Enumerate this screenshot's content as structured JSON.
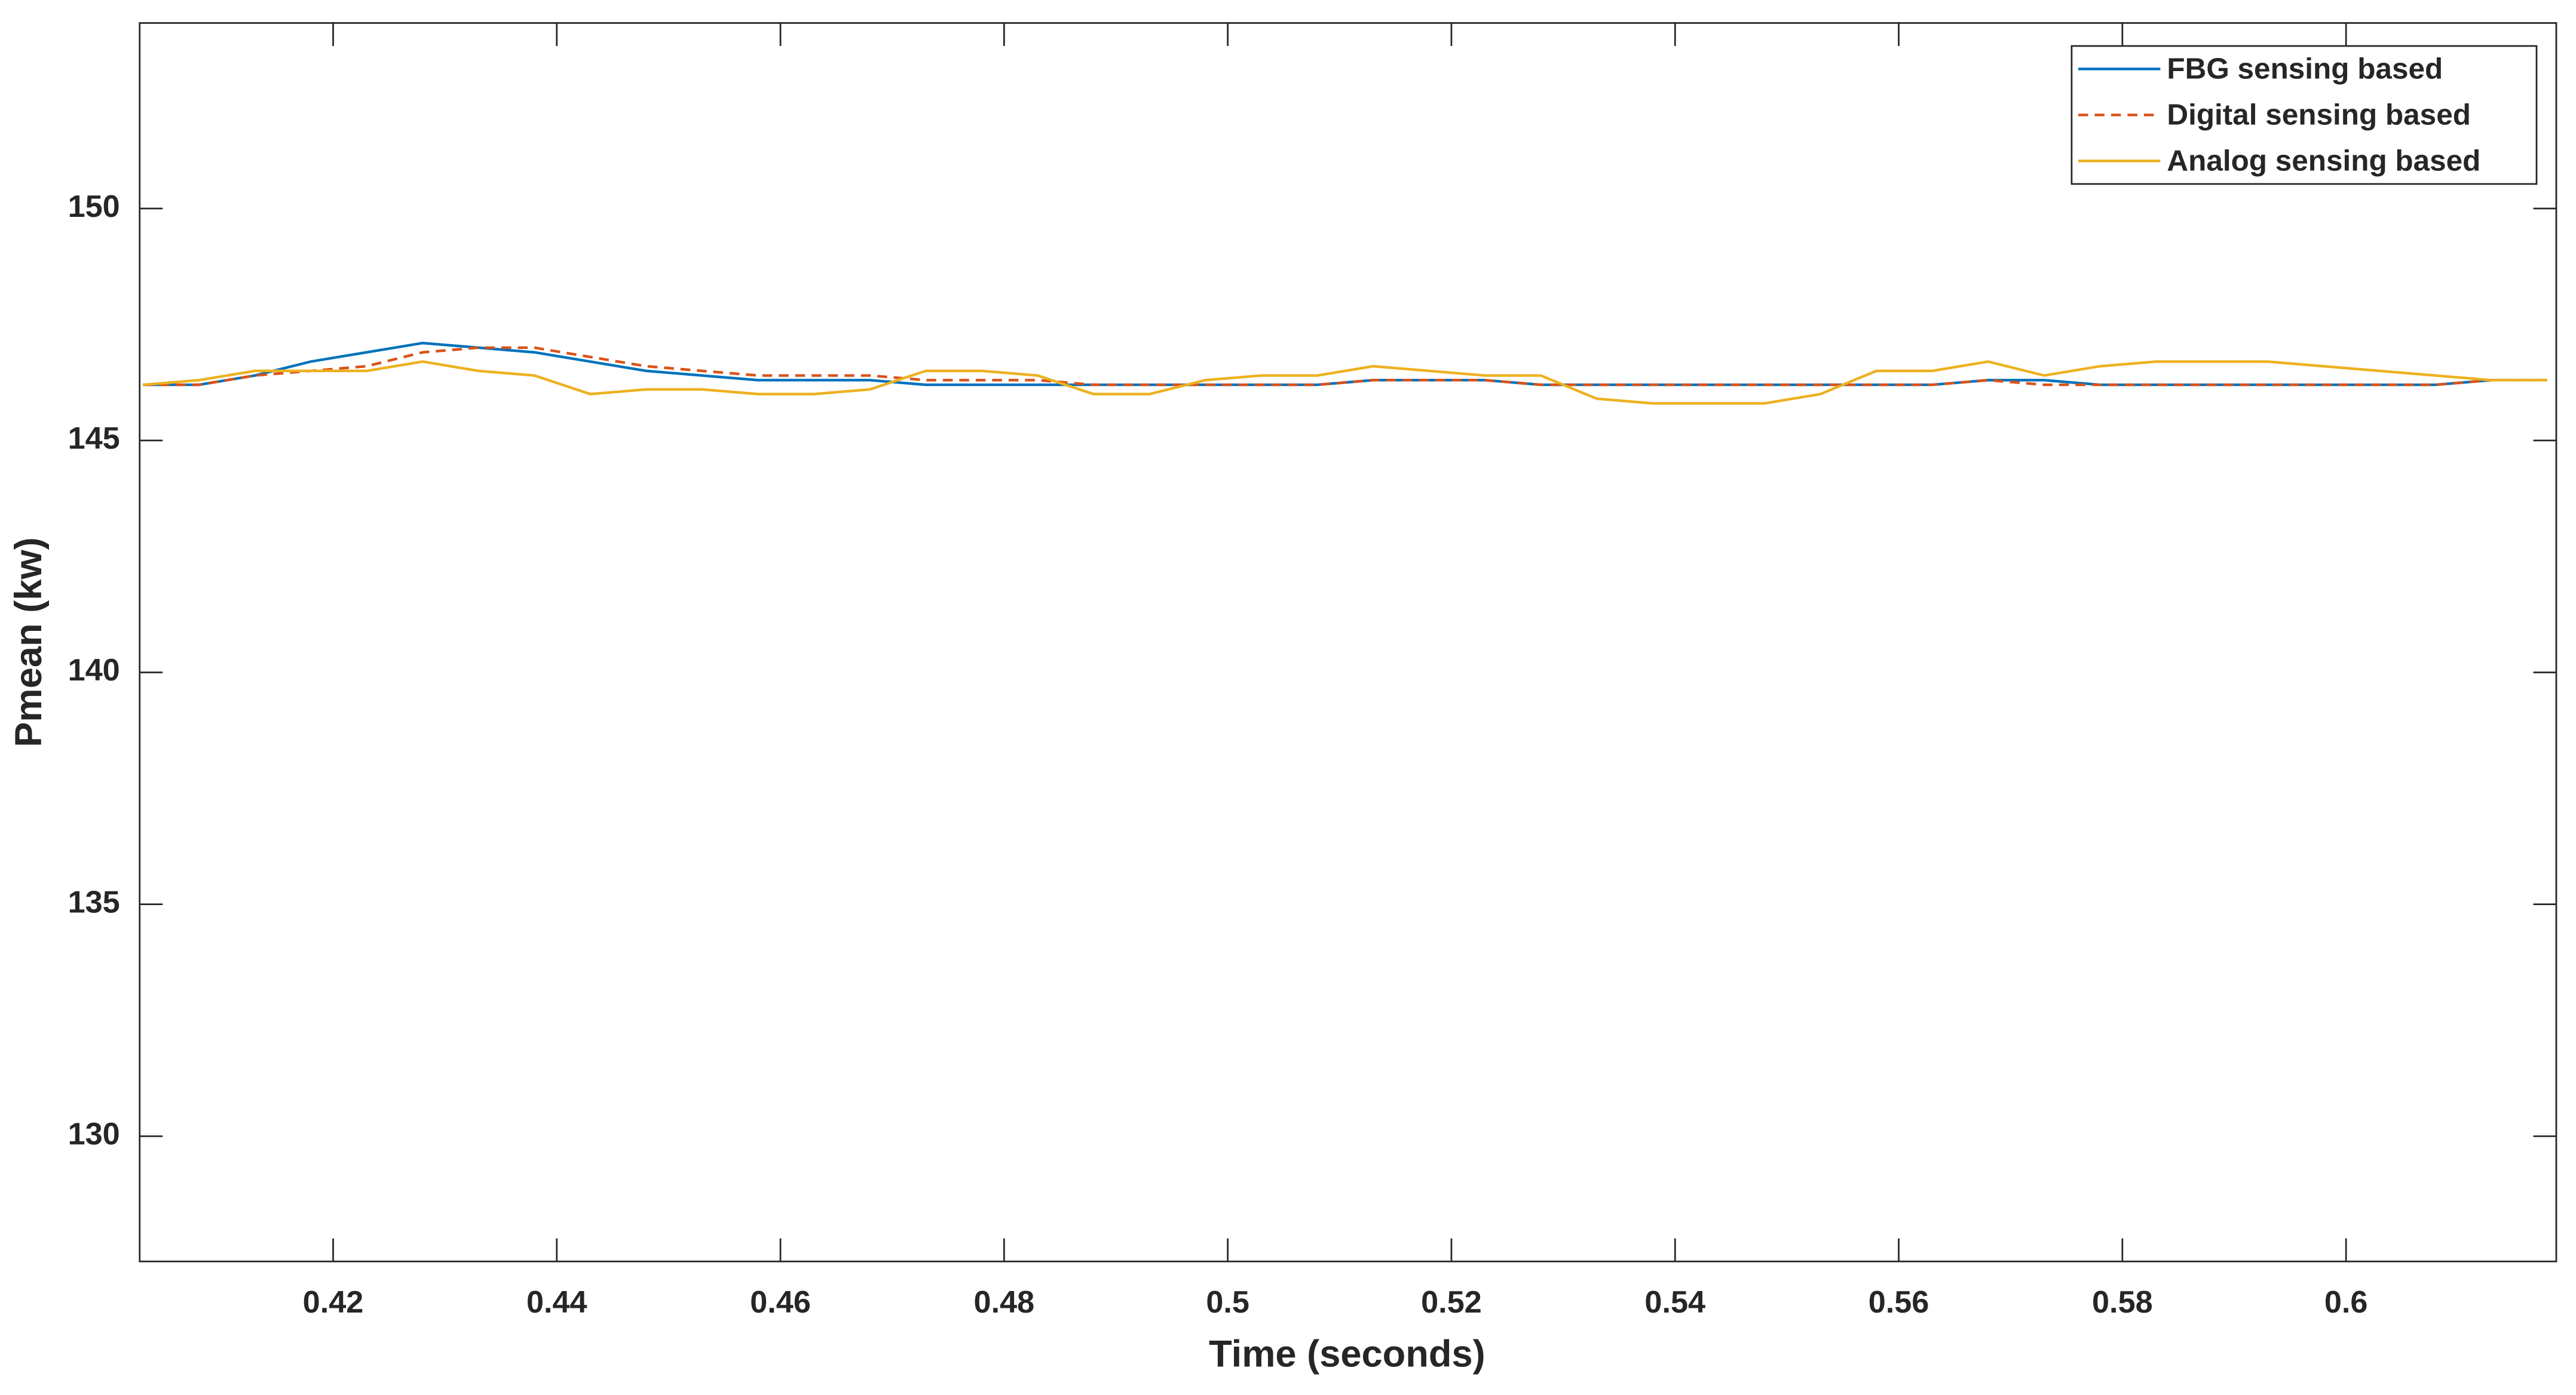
{
  "chart_data": {
    "type": "line",
    "xlabel": "Time (seconds)",
    "ylabel": "Pmean (kw)",
    "x": [
      0.403,
      0.408,
      0.413,
      0.418,
      0.423,
      0.428,
      0.433,
      0.438,
      0.443,
      0.448,
      0.453,
      0.458,
      0.463,
      0.468,
      0.473,
      0.478,
      0.483,
      0.488,
      0.493,
      0.498,
      0.503,
      0.508,
      0.513,
      0.518,
      0.523,
      0.528,
      0.533,
      0.538,
      0.543,
      0.548,
      0.553,
      0.558,
      0.563,
      0.568,
      0.573,
      0.578,
      0.583,
      0.588,
      0.593,
      0.598,
      0.603,
      0.608,
      0.613,
      0.618
    ],
    "series": [
      {
        "name": "FBG sensing based",
        "color": "#0072bd",
        "dash": false,
        "values": [
          146.2,
          146.2,
          146.4,
          146.7,
          146.9,
          147.1,
          147.0,
          146.9,
          146.7,
          146.5,
          146.4,
          146.3,
          146.3,
          146.3,
          146.2,
          146.2,
          146.2,
          146.2,
          146.2,
          146.2,
          146.2,
          146.2,
          146.3,
          146.3,
          146.3,
          146.2,
          146.2,
          146.2,
          146.2,
          146.2,
          146.2,
          146.2,
          146.2,
          146.3,
          146.3,
          146.2,
          146.2,
          146.2,
          146.2,
          146.2,
          146.2,
          146.2,
          146.3,
          146.3
        ]
      },
      {
        "name": "Digital sensing based",
        "color": "#d95319",
        "dash": true,
        "values": [
          146.2,
          146.2,
          146.4,
          146.5,
          146.6,
          146.9,
          147.0,
          147.0,
          146.8,
          146.6,
          146.5,
          146.4,
          146.4,
          146.4,
          146.3,
          146.3,
          146.3,
          146.2,
          146.2,
          146.2,
          146.2,
          146.2,
          146.3,
          146.3,
          146.3,
          146.2,
          146.2,
          146.2,
          146.2,
          146.2,
          146.2,
          146.2,
          146.2,
          146.3,
          146.2,
          146.2,
          146.2,
          146.2,
          146.2,
          146.2,
          146.2,
          146.2,
          146.3,
          146.3
        ]
      },
      {
        "name": "Analog sensing based",
        "color": "#edb120",
        "dash": false,
        "values": [
          146.2,
          146.3,
          146.5,
          146.5,
          146.5,
          146.7,
          146.5,
          146.4,
          146.0,
          146.1,
          146.1,
          146.0,
          146.0,
          146.1,
          146.5,
          146.5,
          146.4,
          146.0,
          146.0,
          146.3,
          146.4,
          146.4,
          146.6,
          146.5,
          146.4,
          146.4,
          145.9,
          145.8,
          145.8,
          145.8,
          146.0,
          146.5,
          146.5,
          146.7,
          146.4,
          146.6,
          146.7,
          146.7,
          146.7,
          146.6,
          146.5,
          146.4,
          146.3,
          146.3
        ]
      }
    ],
    "xlim": [
      0.4027,
      0.6188
    ],
    "xticks": [
      0.42,
      0.44,
      0.46,
      0.48,
      0.5,
      0.52,
      0.54,
      0.56,
      0.58,
      0.6
    ],
    "ylim": [
      127.3,
      154
    ],
    "yticks": [
      130,
      135,
      140,
      145,
      150
    ],
    "grid": false,
    "legend": "upper-right"
  }
}
